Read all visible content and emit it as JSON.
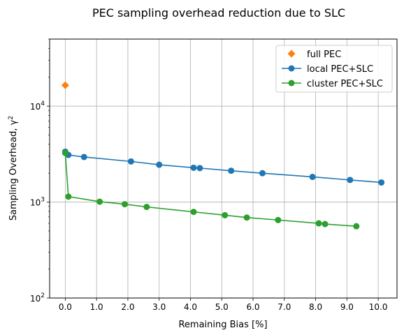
{
  "chart_data": {
    "type": "line",
    "title": "PEC sampling overhead reduction due to SLC",
    "xlabel": "Remaining Bias [%]",
    "ylabel_main": "Sampling Overhead, γ",
    "ylabel_sup": "2",
    "yscale": "log",
    "xlim": [
      -0.5,
      10.6
    ],
    "ylim": [
      100,
      50000
    ],
    "xticks": [
      0,
      1,
      2,
      3,
      4,
      5,
      6,
      7,
      8,
      9,
      10
    ],
    "xtick_labels": [
      "0.0",
      "1.0",
      "2.0",
      "3.0",
      "4.0",
      "5.0",
      "6.0",
      "7.0",
      "8.0",
      "9.0",
      "10.0"
    ],
    "yticks": [
      100,
      1000,
      10000
    ],
    "ytick_labels": [
      {
        "base": "10",
        "exp": "2"
      },
      {
        "base": "10",
        "exp": "3"
      },
      {
        "base": "10",
        "exp": "4"
      }
    ],
    "grid": true,
    "legend_position": "top-right",
    "series": [
      {
        "name": "full PEC",
        "color": "#ff7f0e",
        "marker": "diamond",
        "line": false,
        "x": [
          0.0
        ],
        "y": [
          16500
        ]
      },
      {
        "name": "local PEC+SLC",
        "color": "#1f77b4",
        "marker": "circle",
        "line": true,
        "x": [
          0.0,
          0.1,
          0.6,
          2.1,
          3.0,
          4.1,
          4.3,
          5.3,
          6.3,
          7.9,
          9.1,
          10.1
        ],
        "y": [
          3350,
          3100,
          2950,
          2650,
          2450,
          2280,
          2260,
          2120,
          2000,
          1830,
          1700,
          1600
        ]
      },
      {
        "name": "cluster PEC+SLC",
        "color": "#2ca02c",
        "marker": "circle",
        "line": true,
        "x": [
          0.0,
          0.1,
          1.1,
          1.9,
          2.6,
          4.1,
          5.1,
          5.8,
          6.8,
          8.1,
          8.3,
          9.3
        ],
        "y": [
          3250,
          1140,
          1010,
          950,
          890,
          790,
          730,
          690,
          650,
          600,
          590,
          560
        ]
      }
    ]
  }
}
